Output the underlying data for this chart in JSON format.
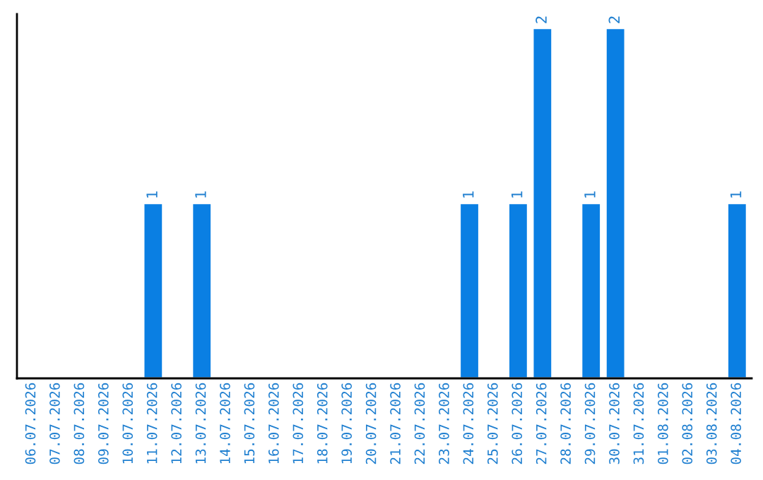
{
  "chart_data": {
    "type": "bar",
    "categories": [
      "06.07.2026",
      "07.07.2026",
      "08.07.2026",
      "09.07.2026",
      "10.07.2026",
      "11.07.2026",
      "12.07.2026",
      "13.07.2026",
      "14.07.2026",
      "15.07.2026",
      "16.07.2026",
      "17.07.2026",
      "18.07.2026",
      "19.07.2026",
      "20.07.2026",
      "21.07.2026",
      "22.07.2026",
      "23.07.2026",
      "24.07.2026",
      "25.07.2026",
      "26.07.2026",
      "27.07.2026",
      "28.07.2026",
      "29.07.2026",
      "30.07.2026",
      "31.07.2026",
      "01.08.2026",
      "02.08.2026",
      "03.08.2026",
      "04.08.2026"
    ],
    "values": [
      null,
      null,
      null,
      null,
      null,
      1,
      null,
      1,
      null,
      null,
      null,
      null,
      null,
      null,
      null,
      null,
      null,
      null,
      1,
      null,
      1,
      2,
      null,
      1,
      2,
      null,
      null,
      null,
      null,
      1
    ],
    "value_labels": [
      null,
      null,
      null,
      null,
      null,
      "1",
      null,
      "1",
      null,
      null,
      null,
      null,
      null,
      null,
      null,
      null,
      null,
      null,
      "1",
      null,
      "1",
      "2",
      null,
      "1",
      "2",
      null,
      null,
      null,
      null,
      "1"
    ],
    "color": "#0a7fe3",
    "ylim": [
      0,
      2.08
    ],
    "tick_labels": "x",
    "grid": false,
    "legend": false
  }
}
